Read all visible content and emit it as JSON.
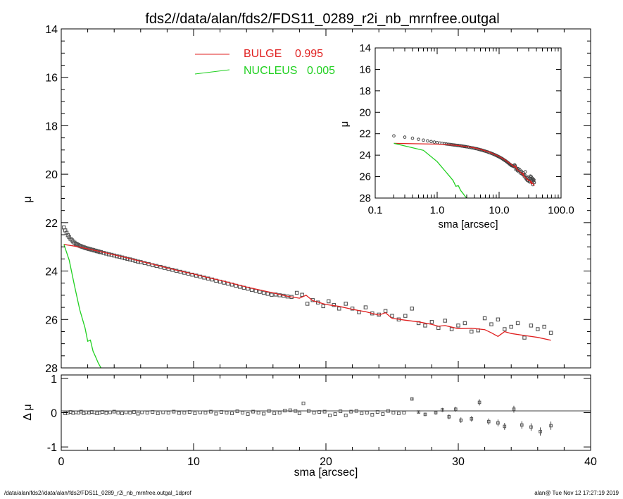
{
  "title": "fds2//data/alan/fds2/FDS11_0289_r2i_nb_mrnfree.outgal",
  "footer": {
    "left": "/data/alan/fds2//data/alan/fds2/FDS11_0289_r2i_nb_mrnfree.outgal_1dprof",
    "right": "alan@  Tue Nov 12 17:27:19 2019"
  },
  "colors": {
    "bulge": "#e02020",
    "nucleus": "#20d020",
    "data": "#555555",
    "axis": "#000000"
  },
  "chart_data": [
    {
      "type": "scatter",
      "name": "main-profile",
      "xlabel": "",
      "ylabel": "μ",
      "xlim": [
        0,
        40
      ],
      "ylim": [
        28,
        14
      ],
      "xticks": [],
      "yticks": [
        14,
        16,
        18,
        20,
        22,
        24,
        26,
        28
      ],
      "legend_placement": "top-center",
      "legend": [
        {
          "label": "BULGE",
          "value": "0.995",
          "color": "#e02020"
        },
        {
          "label": "NUCLEUS",
          "value": "0.005",
          "color": "#20d020"
        }
      ],
      "series": [
        {
          "kind": "points",
          "x": [
            0.2,
            0.3,
            0.4,
            0.5,
            0.6,
            0.7,
            0.8,
            0.9,
            1.0,
            1.1,
            1.2,
            1.3,
            1.4,
            1.5,
            1.6,
            1.7,
            1.8,
            1.9,
            2.0,
            2.1,
            2.2,
            2.3,
            2.4,
            2.5,
            2.6,
            2.7,
            2.8,
            2.9,
            3.0,
            3.2,
            3.4,
            3.6,
            3.8,
            4.0,
            4.2,
            4.4,
            4.6,
            4.8,
            5.0,
            5.2,
            5.4,
            5.6,
            5.8,
            6.0,
            6.3,
            6.6,
            6.9,
            7.2,
            7.5,
            7.8,
            8.1,
            8.4,
            8.7,
            9.0,
            9.3,
            9.6,
            9.9,
            10.2,
            10.5,
            10.8,
            11.1,
            11.4,
            11.7,
            12.0,
            12.3,
            12.6,
            12.9,
            13.2,
            13.5,
            13.8,
            14.1,
            14.4,
            14.7,
            15.0,
            15.3,
            15.6,
            15.9,
            16.2,
            16.5,
            16.8,
            17.1,
            17.4,
            17.8,
            18.2,
            18.6,
            19.0,
            19.4,
            19.8,
            20.2,
            20.6,
            21.0,
            21.5,
            22.0,
            22.5,
            23.0,
            23.5,
            24.0,
            24.5,
            25.0,
            25.5,
            26.0,
            26.5,
            27.0,
            27.5,
            28.0,
            28.5,
            29.0,
            29.5,
            30.0,
            30.5,
            31.0,
            31.5,
            32.0,
            32.5,
            33.0,
            33.5,
            34.0,
            34.5,
            35.0,
            35.5,
            36.0,
            36.5,
            37.0
          ],
          "y": [
            22.2,
            22.32,
            22.42,
            22.52,
            22.6,
            22.67,
            22.73,
            22.78,
            22.83,
            22.87,
            22.9,
            22.93,
            22.96,
            22.98,
            23.0,
            23.02,
            23.04,
            23.06,
            23.07,
            23.09,
            23.1,
            23.12,
            23.13,
            23.15,
            23.16,
            23.18,
            23.19,
            23.21,
            23.22,
            23.25,
            23.28,
            23.31,
            23.33,
            23.36,
            23.39,
            23.41,
            23.44,
            23.47,
            23.5,
            23.52,
            23.55,
            23.58,
            23.61,
            23.63,
            23.67,
            23.71,
            23.76,
            23.79,
            23.83,
            23.87,
            23.91,
            23.95,
            23.99,
            24.03,
            24.07,
            24.11,
            24.15,
            24.19,
            24.23,
            24.27,
            24.31,
            24.35,
            24.4,
            24.44,
            24.48,
            24.52,
            24.56,
            24.61,
            24.65,
            24.69,
            24.73,
            24.78,
            24.82,
            24.86,
            24.9,
            24.94,
            24.98,
            24.97,
            25.0,
            25.02,
            25.05,
            25.07,
            24.9,
            24.98,
            25.35,
            25.2,
            25.3,
            25.45,
            25.25,
            25.4,
            25.55,
            25.35,
            25.55,
            25.7,
            25.5,
            25.75,
            25.8,
            25.65,
            25.85,
            26.0,
            25.85,
            25.55,
            26.15,
            26.25,
            26.1,
            26.35,
            26.05,
            26.4,
            26.25,
            26.15,
            26.5,
            26.45,
            25.95,
            26.2,
            26.0,
            26.4,
            26.3,
            26.15,
            26.75,
            26.25,
            26.4,
            26.3,
            26.55
          ]
        },
        {
          "kind": "line",
          "label": "BULGE",
          "x": [
            0.2,
            1.0,
            2.0,
            3.0,
            4.0,
            5.0,
            6.0,
            7.0,
            8.0,
            9.0,
            10.0,
            11.0,
            12.0,
            13.0,
            14.0,
            15.0,
            16.0,
            17.0,
            18.0,
            18.5,
            19.0,
            20.0,
            21.0,
            22.0,
            23.0,
            24.0,
            24.5,
            25.0,
            26.0,
            27.0,
            28.0,
            28.5,
            29.0,
            30.0,
            31.0,
            32.0,
            32.5,
            33.0,
            33.5,
            34.0,
            35.0,
            36.0,
            37.0
          ],
          "y": [
            22.9,
            22.97,
            23.08,
            23.2,
            23.33,
            23.46,
            23.6,
            23.73,
            23.87,
            24.0,
            24.12,
            24.26,
            24.38,
            24.52,
            24.66,
            24.78,
            24.9,
            25.03,
            25.12,
            25.0,
            25.22,
            25.38,
            25.46,
            25.58,
            25.68,
            25.82,
            25.72,
            25.95,
            26.03,
            26.1,
            26.2,
            26.28,
            26.25,
            26.38,
            26.36,
            26.42,
            26.55,
            26.7,
            26.5,
            26.58,
            26.66,
            26.74,
            26.86
          ]
        },
        {
          "kind": "line",
          "label": "NUCLEUS",
          "x": [
            0.2,
            0.6,
            1.0,
            1.4,
            1.8,
            2.0,
            2.2,
            2.4,
            2.6,
            2.8,
            3.0
          ],
          "y": [
            22.9,
            23.55,
            24.6,
            25.6,
            26.35,
            26.9,
            26.85,
            27.3,
            27.55,
            27.8,
            28.0
          ]
        }
      ]
    },
    {
      "type": "scatter",
      "name": "residuals",
      "xlabel": "sma [arcsec]",
      "ylabel": "Δ μ",
      "xlim": [
        0,
        40
      ],
      "ylim": [
        -1.1,
        1.1
      ],
      "xticks": [
        0,
        10,
        20,
        30,
        40
      ],
      "yticks": [
        -1,
        0,
        1
      ],
      "series": [
        {
          "kind": "points",
          "x": [
            0.3,
            0.5,
            0.7,
            0.9,
            1.1,
            1.3,
            1.5,
            1.7,
            1.9,
            2.1,
            2.3,
            2.5,
            2.7,
            2.9,
            3.1,
            3.4,
            3.7,
            4.0,
            4.3,
            4.6,
            4.9,
            5.2,
            5.5,
            5.8,
            6.1,
            6.5,
            6.9,
            7.3,
            7.7,
            8.1,
            8.5,
            8.9,
            9.3,
            9.7,
            10.1,
            10.5,
            10.9,
            11.3,
            11.7,
            12.1,
            12.5,
            12.9,
            13.3,
            13.7,
            14.1,
            14.5,
            14.9,
            15.3,
            15.7,
            16.1,
            16.5,
            16.9,
            17.3,
            17.7,
            18.0,
            18.3,
            18.7,
            19.1,
            19.5,
            19.9,
            20.3,
            20.7,
            21.1,
            21.5,
            21.9,
            22.3,
            22.7,
            23.1,
            23.5,
            23.9,
            24.3,
            24.7,
            25.1,
            25.5,
            25.9
          ],
          "y": [
            -0.02,
            0.0,
            0.02,
            -0.01,
            0.01,
            0.0,
            0.03,
            -0.02,
            0.01,
            0.0,
            0.02,
            0.01,
            -0.02,
            0.0,
            0.02,
            -0.01,
            0.01,
            0.03,
            0.0,
            -0.02,
            0.01,
            0.0,
            0.02,
            -0.03,
            0.01,
            0.0,
            0.02,
            -0.02,
            0.01,
            0.0,
            0.03,
            -0.01,
            0.0,
            0.02,
            -0.02,
            0.01,
            0.0,
            0.03,
            -0.03,
            0.02,
            0.0,
            -0.02,
            0.04,
            0.0,
            -0.04,
            0.03,
            0.0,
            -0.03,
            0.05,
            -0.02,
            0.0,
            0.06,
            0.07,
            0.05,
            -0.02,
            0.27,
            0.05,
            0.0,
            0.02,
            0.03,
            -0.08,
            -0.04,
            0.04,
            -0.08,
            0.03,
            0.05,
            -0.02,
            0.0,
            -0.06,
            0.02,
            -0.04,
            0.05,
            0.0,
            -0.02,
            0.0
          ]
        },
        {
          "kind": "errorbars",
          "x": [
            26.5,
            27.0,
            27.5,
            28.3,
            28.8,
            29.3,
            29.8,
            30.2,
            31.0,
            31.6,
            32.3,
            33.0,
            33.5,
            34.2,
            34.8,
            35.5,
            36.2,
            37.0
          ],
          "y": [
            0.4,
            0.02,
            -0.05,
            0.0,
            0.08,
            -0.12,
            0.1,
            -0.22,
            -0.18,
            0.3,
            -0.26,
            -0.3,
            -0.4,
            0.1,
            -0.36,
            -0.42,
            -0.55,
            -0.38
          ],
          "err": [
            0.04,
            0.04,
            0.05,
            0.06,
            0.06,
            0.07,
            0.07,
            0.08,
            0.08,
            0.09,
            0.09,
            0.1,
            0.1,
            0.1,
            0.11,
            0.11,
            0.12,
            0.12
          ]
        }
      ]
    },
    {
      "type": "scatter",
      "name": "inset-log-profile",
      "xlabel": "sma [arcsec]",
      "ylabel": "μ",
      "xscale": "log",
      "xlim": [
        0.1,
        100.0
      ],
      "ylim": [
        28,
        14
      ],
      "xticks": [
        0.1,
        1.0,
        10.0,
        100.0
      ],
      "xticklabels": [
        "0.1",
        "1.0",
        "10.0",
        "100.0"
      ],
      "yticks": [
        14,
        16,
        18,
        20,
        22,
        24,
        26,
        28
      ]
    }
  ]
}
